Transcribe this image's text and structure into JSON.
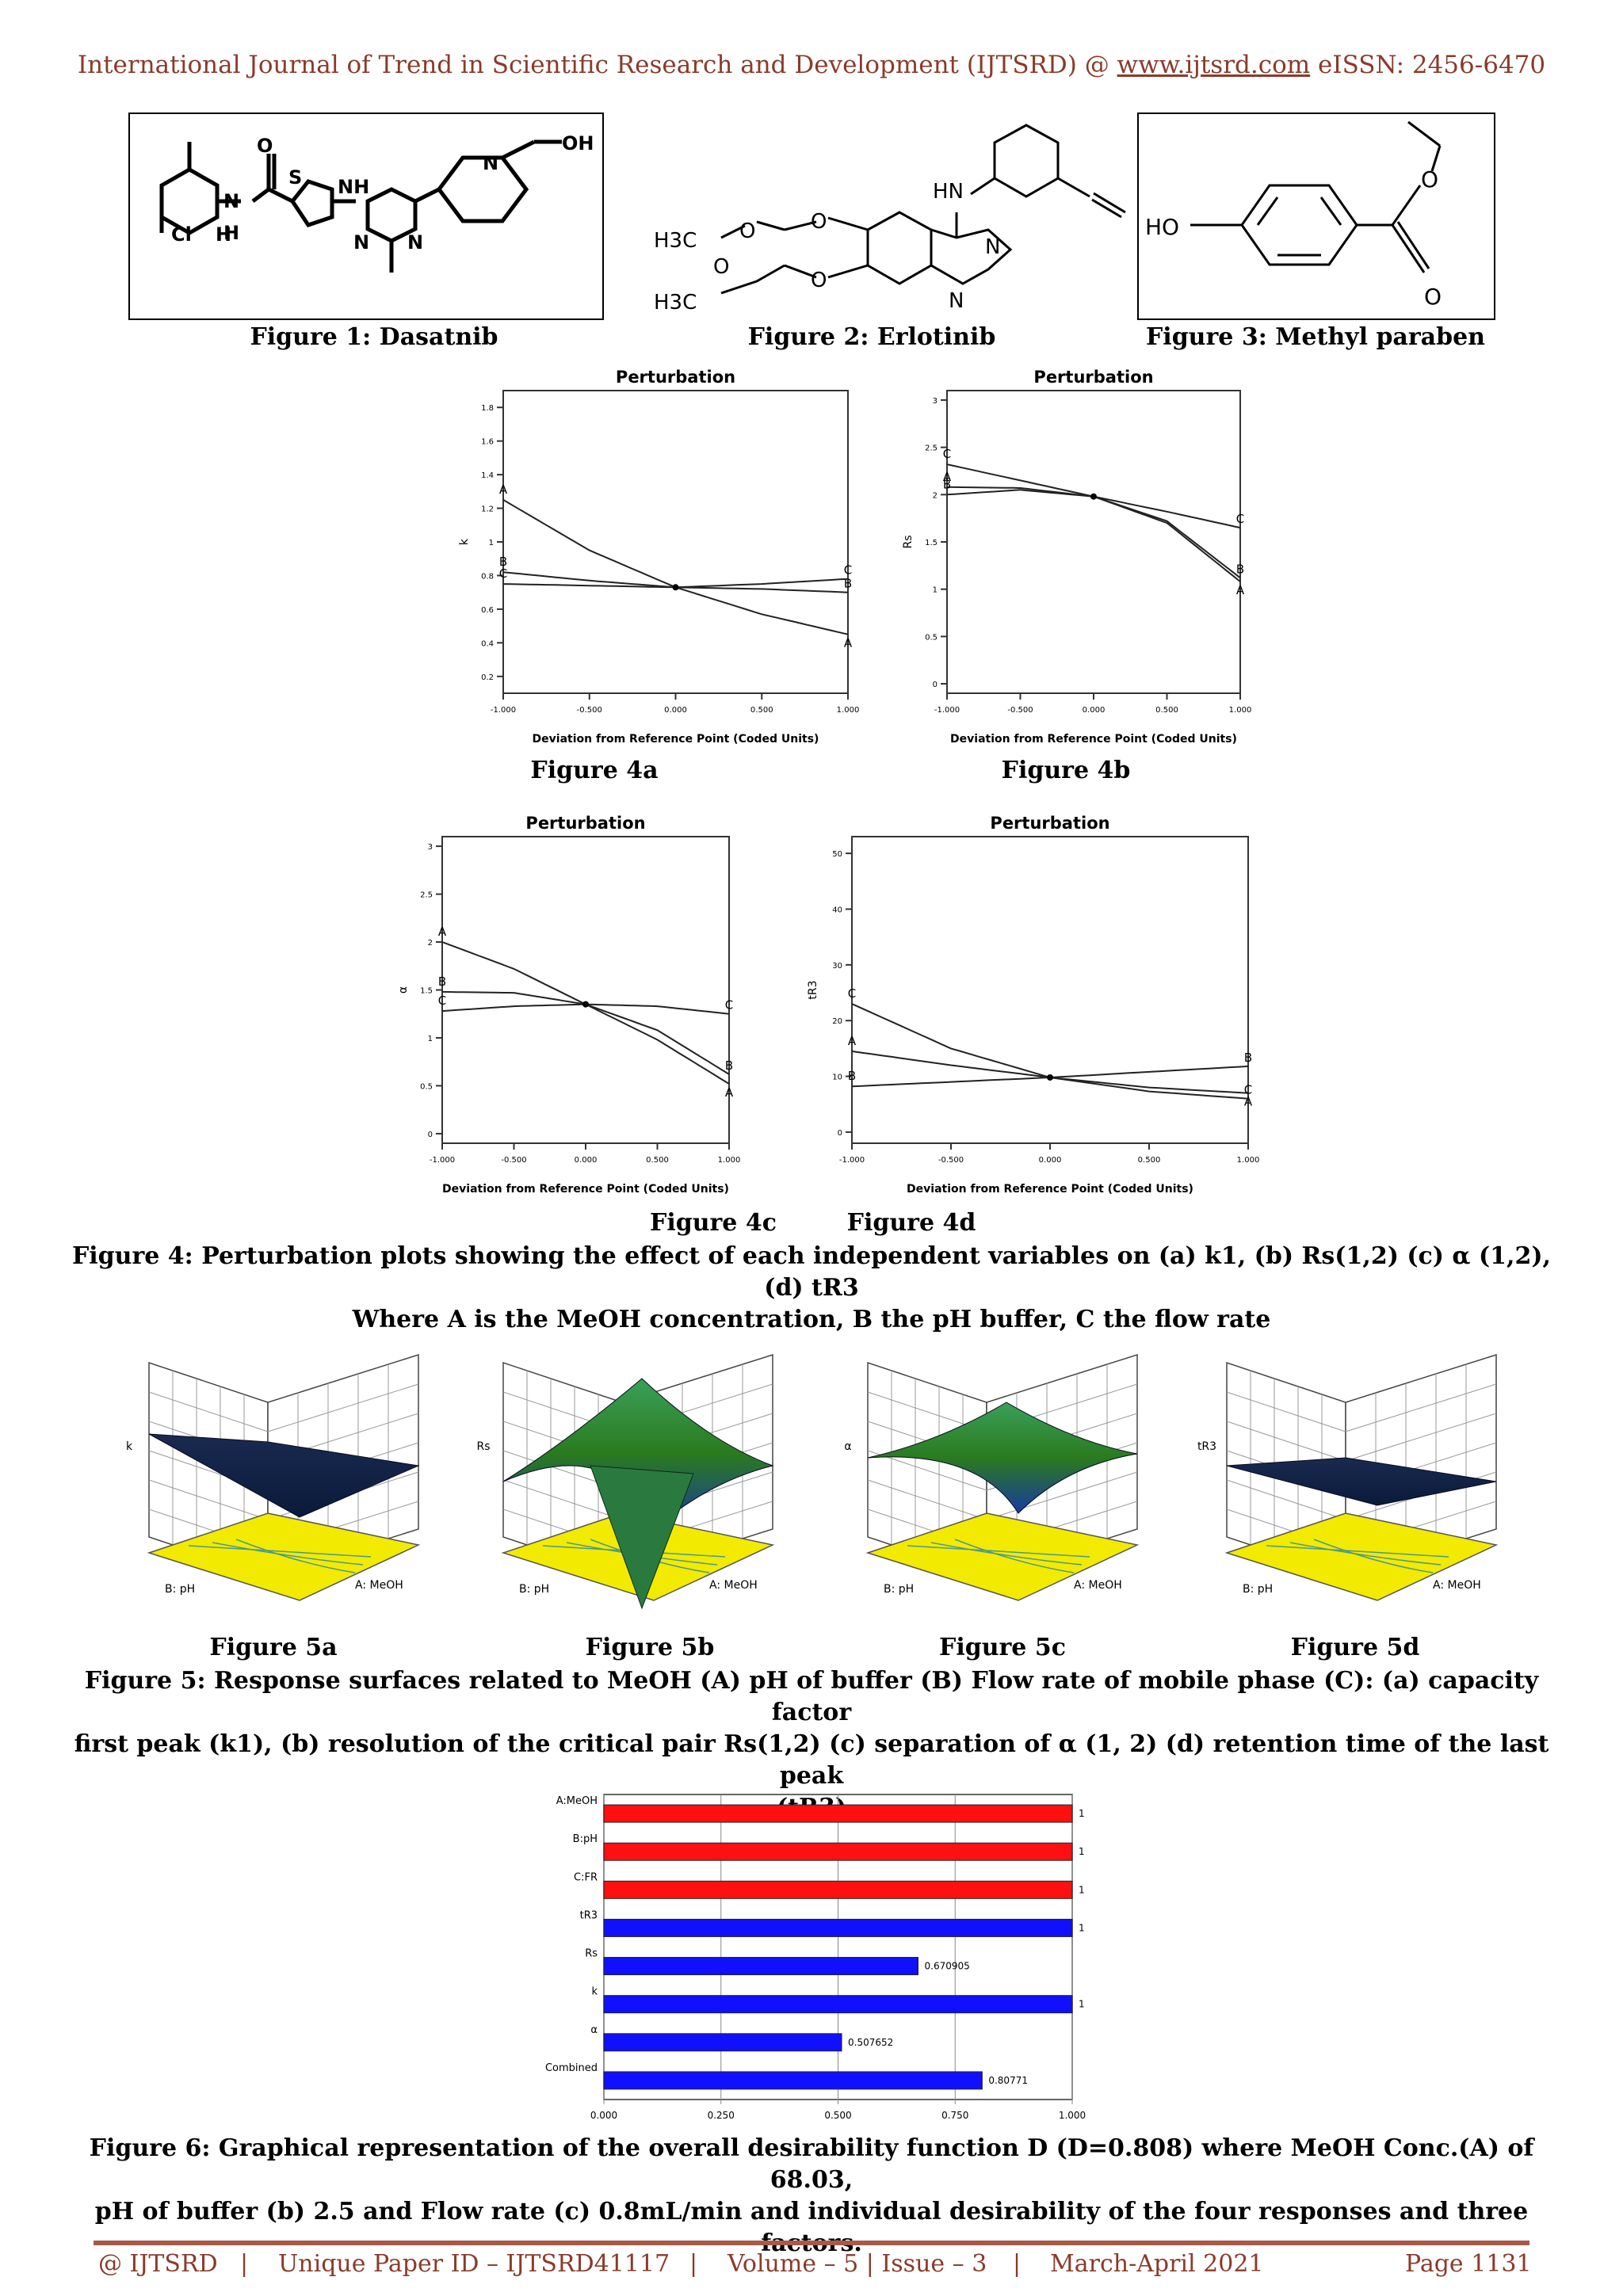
{
  "header": {
    "journal": "International Journal of Trend in Scientific Research and Development (IJTSRD) @ ",
    "link": "www.ijtsrd.com",
    "issn": " eISSN: 2456-6470"
  },
  "structures": {
    "fig1": {
      "caption": "Figure 1: Dasatnib",
      "labels": [
        "O",
        "S",
        "NH",
        "N",
        "OH",
        "N",
        "H",
        "Cl",
        "H",
        "N",
        "N"
      ]
    },
    "fig2": {
      "caption": "Figure 2: Erlotinib",
      "labels": [
        "HN",
        "N",
        "N",
        "O",
        "O",
        "H3C",
        "H3C",
        "O",
        "O"
      ]
    },
    "fig3": {
      "caption": "Figure 3: Methyl paraben",
      "labels": [
        "HO",
        "O",
        "O"
      ]
    }
  },
  "perturbation": {
    "title": "Perturbation",
    "xlabel": "Deviation from Reference Point (Coded Units)",
    "xticks": [
      "-1.000",
      "-0.500",
      "0.000",
      "0.500",
      "1.000"
    ],
    "captions": [
      "Figure 4a",
      "Figure 4b",
      "Figure 4c",
      "Figure 4d"
    ]
  },
  "fig4_caption": {
    "line1": "Figure 4: Perturbation plots showing the effect of each independent variables on (a) k1, (b) Rs(1,2) (c) α (1,2), (d) tR3",
    "line2": "Where A is the MeOH concentration, B the pH buffer, C the flow rate"
  },
  "surfaces": {
    "captions": [
      "Figure 5a",
      "Figure 5b",
      "Figure 5c",
      "Figure 5d"
    ],
    "zlabels": [
      "k",
      "Rs",
      "α",
      "tR3"
    ],
    "xlabel": "A: MeOH",
    "ylabel": "B: pH",
    "colors": {
      "plane": "#f2ea00",
      "surface_high": "#2a7a1e",
      "surface_low": "#0a1a3a"
    }
  },
  "fig5_caption": {
    "line1": "Figure 5: Response surfaces related to MeOH (A) pH of buffer (B) Flow rate of mobile phase (C): (a) capacity factor",
    "line2": "first peak (k1), (b) resolution of the critical pair Rs(1,2) (c) separation of α (1, 2) (d) retention time of the last peak",
    "line3": "(tR3)"
  },
  "fig6_caption": {
    "line1": "Figure 6: Graphical representation of the overall desirability function D (D=0.808) where MeOH Conc.(A) of 68.03,",
    "line2": "pH of buffer (b) 2.5 and Flow rate (c) 0.8mL/min and individual desirability of the four responses and three factors."
  },
  "footer": {
    "left": "@ IJTSRD",
    "paper_id": "Unique Paper ID – IJTSRD41117",
    "volume": "Volume – 5 | Issue – 3",
    "date": "March-April 2021",
    "page": "Page 1131",
    "sep": "|"
  },
  "chart_data": [
    {
      "id": "fig4a",
      "type": "line",
      "title": "Perturbation",
      "xlabel": "Deviation from Reference Point (Coded Units)",
      "ylabel": "k",
      "x": [
        -1,
        -0.5,
        0,
        0.5,
        1
      ],
      "xlim": [
        -1,
        1
      ],
      "ylim": [
        0.1,
        1.9
      ],
      "yticks": [
        0.2,
        0.4,
        0.6,
        0.8,
        1,
        1.2,
        1.4,
        1.6,
        1.8
      ],
      "series": [
        {
          "name": "A",
          "values": [
            1.25,
            0.95,
            0.73,
            0.57,
            0.45
          ]
        },
        {
          "name": "B",
          "values": [
            0.82,
            0.77,
            0.73,
            0.72,
            0.7
          ]
        },
        {
          "name": "C",
          "values": [
            0.75,
            0.74,
            0.73,
            0.75,
            0.78
          ]
        }
      ]
    },
    {
      "id": "fig4b",
      "type": "line",
      "title": "Perturbation",
      "xlabel": "Deviation from Reference Point (Coded Units)",
      "ylabel": "Rs",
      "x": [
        -1,
        -0.5,
        0,
        0.5,
        1
      ],
      "xlim": [
        -1,
        1
      ],
      "ylim": [
        -0.1,
        3.1
      ],
      "yticks": [
        0,
        0.5,
        1,
        1.5,
        2,
        2.5,
        3
      ],
      "series": [
        {
          "name": "A",
          "values": [
            2.08,
            2.07,
            1.98,
            1.7,
            1.08
          ]
        },
        {
          "name": "B",
          "values": [
            2.0,
            2.05,
            1.98,
            1.72,
            1.12
          ]
        },
        {
          "name": "C",
          "values": [
            2.32,
            2.15,
            1.98,
            1.82,
            1.65
          ]
        }
      ]
    },
    {
      "id": "fig4c",
      "type": "line",
      "title": "Perturbation",
      "xlabel": "Deviation from Reference Point (Coded Units)",
      "ylabel": "α",
      "x": [
        -1,
        -0.5,
        0,
        0.5,
        1
      ],
      "xlim": [
        -1,
        1
      ],
      "ylim": [
        -0.1,
        3.1
      ],
      "yticks": [
        0,
        0.5,
        1,
        1.5,
        2,
        2.5,
        3
      ],
      "series": [
        {
          "name": "A",
          "values": [
            2.0,
            1.72,
            1.35,
            0.98,
            0.52
          ]
        },
        {
          "name": "B",
          "values": [
            1.48,
            1.47,
            1.35,
            1.08,
            0.62
          ]
        },
        {
          "name": "C",
          "values": [
            1.28,
            1.33,
            1.35,
            1.33,
            1.25
          ]
        }
      ]
    },
    {
      "id": "fig4d",
      "type": "line",
      "title": "Perturbation",
      "xlabel": "Deviation from Reference Point (Coded Units)",
      "ylabel": "tR3",
      "x": [
        -1,
        -0.5,
        0,
        0.5,
        1
      ],
      "xlim": [
        -1,
        1
      ],
      "ylim": [
        -2,
        53
      ],
      "yticks": [
        0,
        10,
        20,
        30,
        40,
        50
      ],
      "series": [
        {
          "name": "A",
          "values": [
            14.5,
            12,
            9.8,
            8,
            7
          ]
        },
        {
          "name": "B",
          "values": [
            8.2,
            9,
            9.8,
            10.8,
            11.8
          ]
        },
        {
          "name": "C",
          "values": [
            23,
            15,
            9.8,
            7.3,
            6
          ]
        }
      ]
    },
    {
      "id": "fig6",
      "type": "bar",
      "orientation": "horizontal",
      "categories": [
        "A:MeOH",
        "B:pH",
        "C:FR",
        "tR3",
        "Rs",
        "k",
        "α",
        "Combined"
      ],
      "values": [
        1,
        1,
        1,
        1,
        0.670905,
        1,
        0.507652,
        0.80771
      ],
      "value_labels": [
        "1",
        "1",
        "1",
        "1",
        "0.670905",
        "1",
        "0.507652",
        "0.80771"
      ],
      "colors": [
        "#ff1010",
        "#ff1010",
        "#ff1010",
        "#1010ff",
        "#1010ff",
        "#1010ff",
        "#1010ff",
        "#1010ff"
      ],
      "xlim": [
        0,
        1
      ],
      "xticks": [
        "0.000",
        "0.250",
        "0.500",
        "0.750",
        "1.000"
      ]
    }
  ]
}
